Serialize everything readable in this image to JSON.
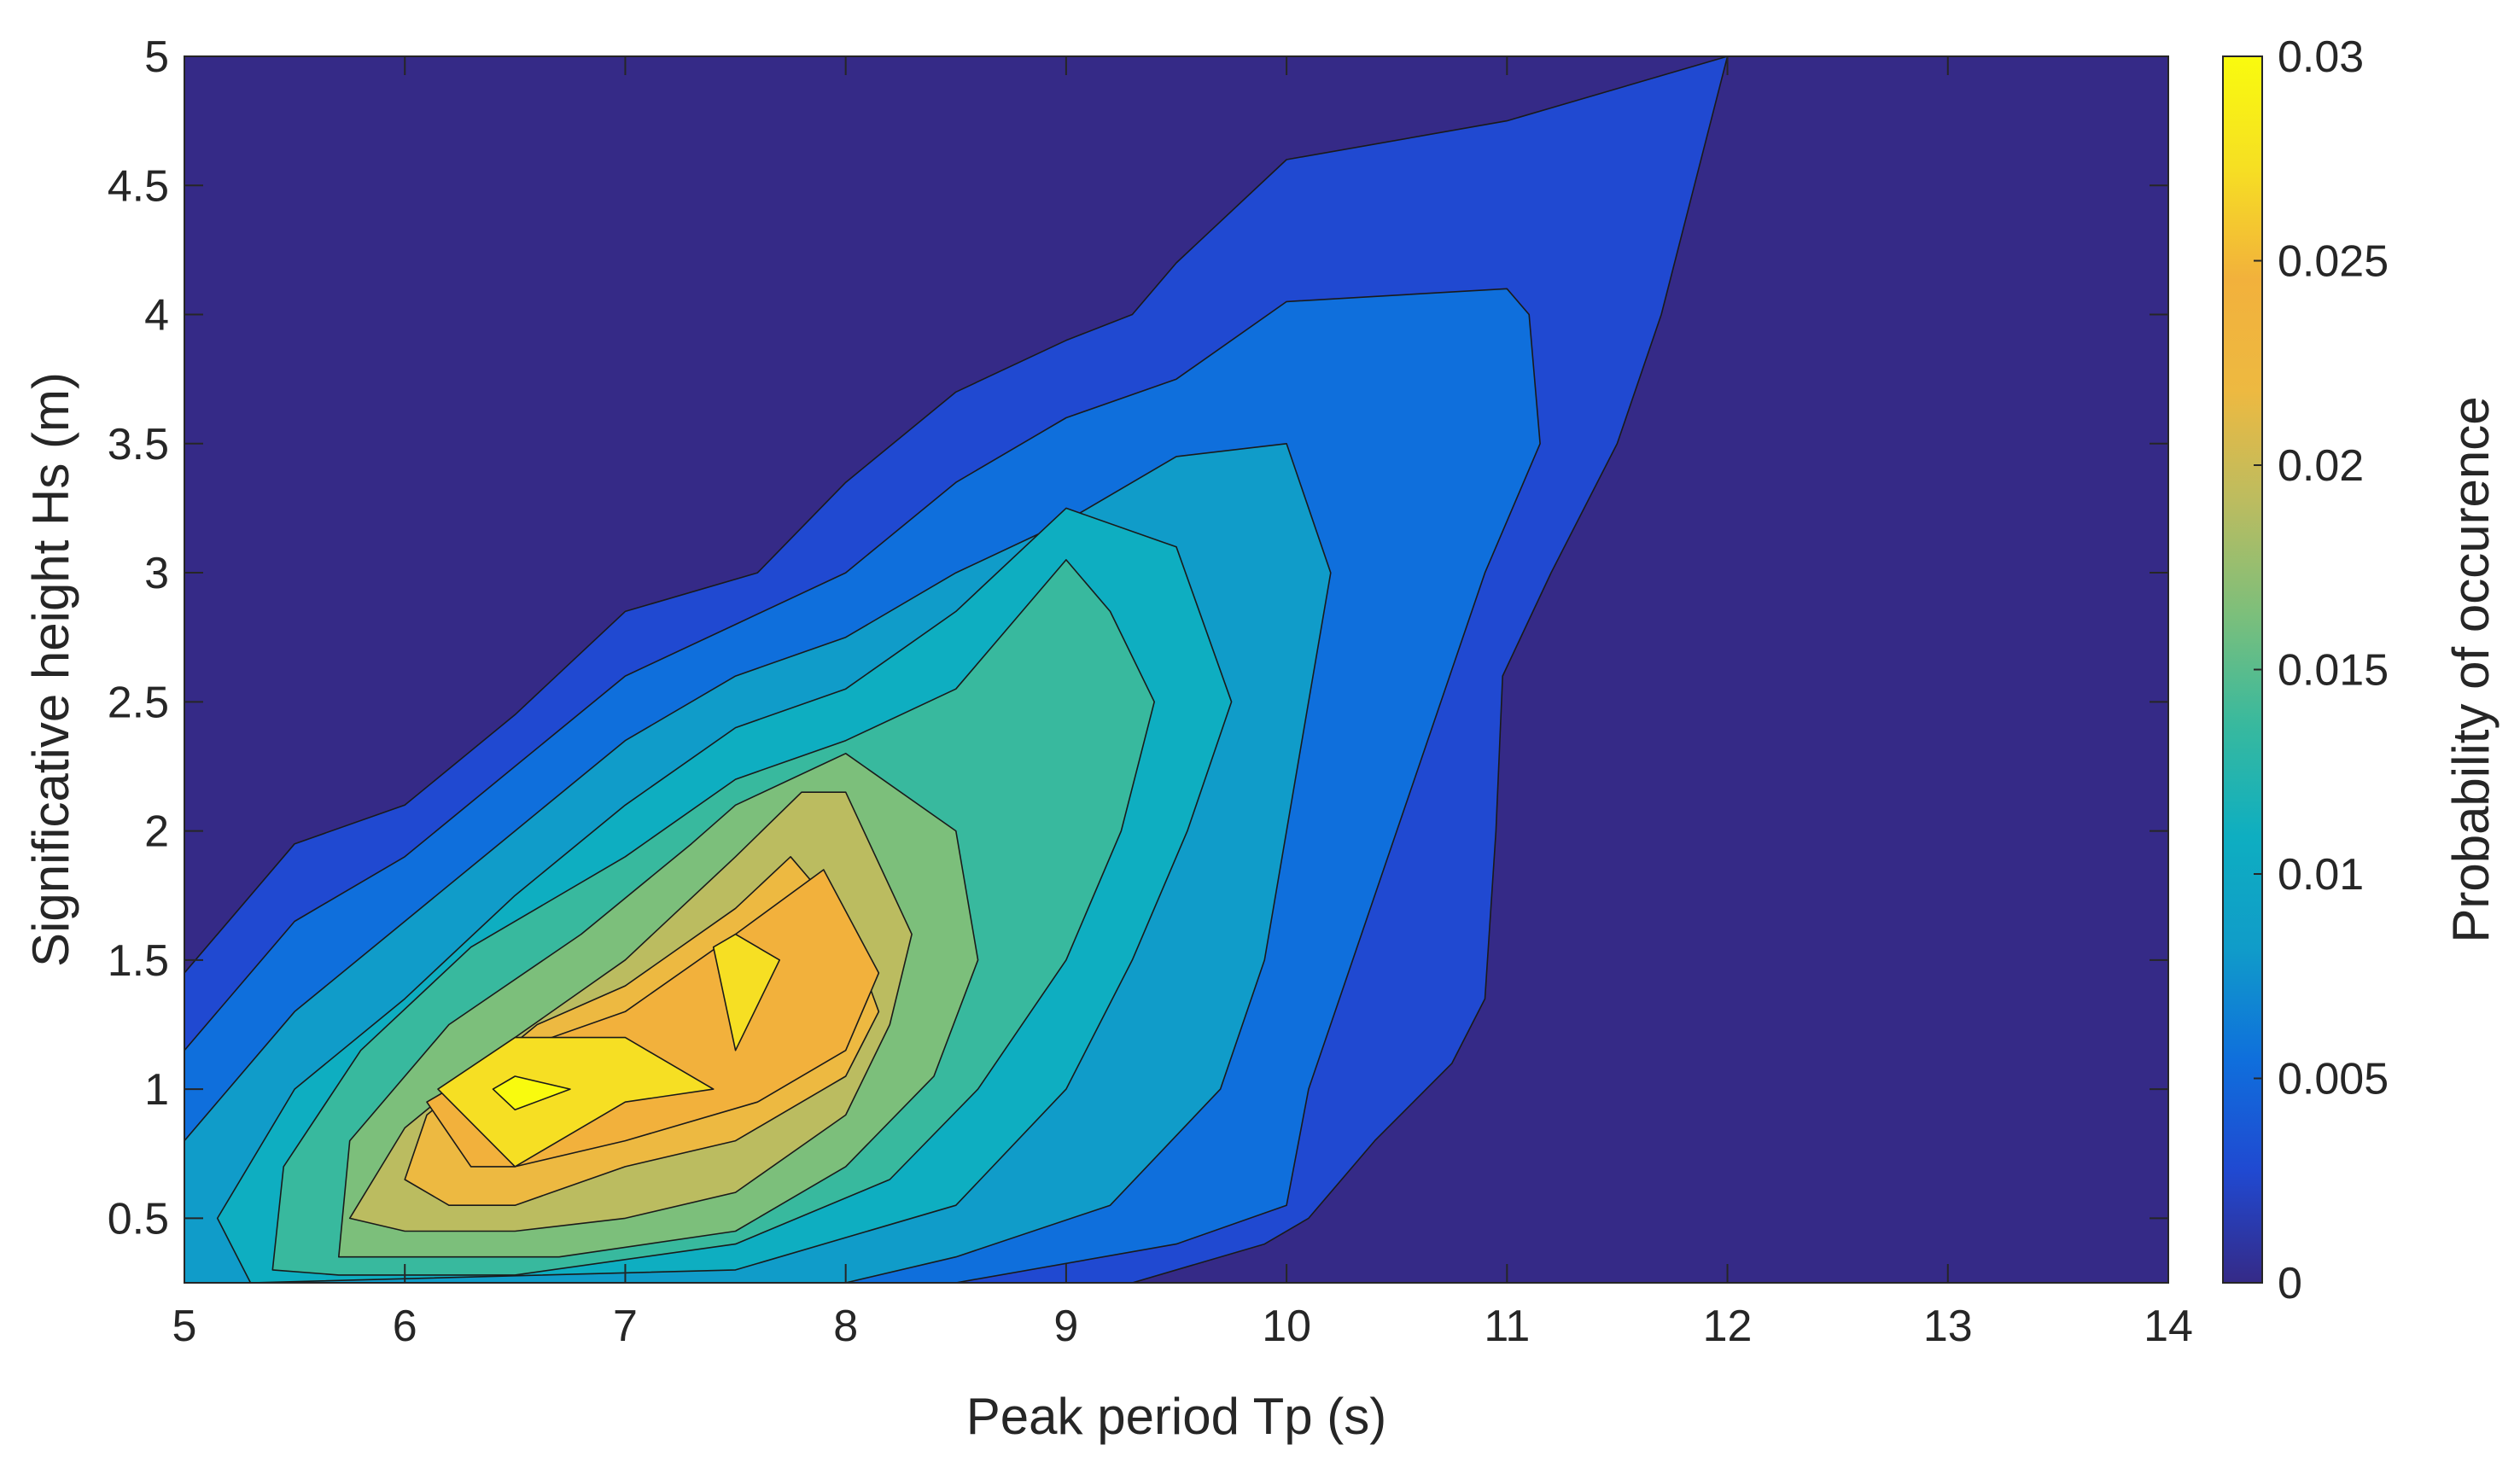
{
  "chart_data": {
    "type": "contourf",
    "title": "",
    "xlabel": "Peak period Tp (s)",
    "ylabel": "Significative height Hs (m)",
    "xlim": [
      5,
      14
    ],
    "ylim": [
      0.25,
      5
    ],
    "xticks": [
      5,
      6,
      7,
      8,
      9,
      10,
      11,
      12,
      13,
      14
    ],
    "yticks": [
      0.5,
      1,
      1.5,
      2,
      2.5,
      3,
      3.5,
      4,
      4.5,
      5
    ],
    "xtick_labels": [
      "5",
      "6",
      "7",
      "8",
      "9",
      "10",
      "11",
      "12",
      "13",
      "14"
    ],
    "ytick_labels": [
      "0.5",
      "1",
      "1.5",
      "2",
      "2.5",
      "3",
      "3.5",
      "4",
      "4.5",
      "5"
    ],
    "colorbar": {
      "label": "Probability of occurence",
      "limits": [
        0,
        0.03
      ],
      "ticks": [
        0,
        0.005,
        0.01,
        0.015,
        0.02,
        0.025,
        0.03
      ],
      "tick_labels": [
        "0",
        "0.005",
        "0.01",
        "0.015",
        "0.02",
        "0.025",
        "0.03"
      ],
      "colormap": "parula"
    },
    "contour_levels": [
      {
        "level": 0.0,
        "color": "#352A87",
        "points": [
          [
            5,
            0.25
          ],
          [
            14,
            0.25
          ],
          [
            14,
            5
          ],
          [
            5,
            5
          ]
        ]
      },
      {
        "level": 0.0025,
        "color": "#2049D1",
        "points": [
          [
            5,
            0.25
          ],
          [
            9.3,
            0.25
          ],
          [
            9.9,
            0.4
          ],
          [
            10.1,
            0.5
          ],
          [
            10.4,
            0.8
          ],
          [
            10.75,
            1.1
          ],
          [
            10.9,
            1.35
          ],
          [
            10.95,
            2
          ],
          [
            10.98,
            2.6
          ],
          [
            11.2,
            3.0
          ],
          [
            11.5,
            3.5
          ],
          [
            11.7,
            4.0
          ],
          [
            12.0,
            5.0
          ],
          [
            11.0,
            4.75
          ],
          [
            10,
            4.6
          ],
          [
            9.5,
            4.2
          ],
          [
            9.3,
            4.0
          ],
          [
            9,
            3.9
          ],
          [
            8.5,
            3.7
          ],
          [
            8,
            3.35
          ],
          [
            7.6,
            3.0
          ],
          [
            7.0,
            2.85
          ],
          [
            6.5,
            2.45
          ],
          [
            6,
            2.1
          ],
          [
            5.5,
            1.95
          ],
          [
            5,
            1.45
          ]
        ]
      },
      {
        "level": 0.005,
        "color": "#0F6FDC",
        "points": [
          [
            5,
            1.15
          ],
          [
            5.5,
            1.65
          ],
          [
            6,
            1.9
          ],
          [
            6.5,
            2.25
          ],
          [
            7,
            2.6
          ],
          [
            7.5,
            2.8
          ],
          [
            8,
            3.0
          ],
          [
            8.5,
            3.35
          ],
          [
            9,
            3.6
          ],
          [
            9.5,
            3.75
          ],
          [
            10,
            4.05
          ],
          [
            11,
            4.1
          ],
          [
            11.1,
            4.0
          ],
          [
            11.15,
            3.5
          ],
          [
            10.9,
            3.0
          ],
          [
            10.7,
            2.5
          ],
          [
            10.5,
            2.0
          ],
          [
            10.3,
            1.5
          ],
          [
            10.1,
            1.0
          ],
          [
            10.0,
            0.55
          ],
          [
            9.5,
            0.4
          ],
          [
            8.5,
            0.25
          ],
          [
            5,
            0.25
          ]
        ]
      },
      {
        "level": 0.01,
        "color": "#109CC9",
        "points": [
          [
            5,
            0.8
          ],
          [
            5.5,
            1.3
          ],
          [
            6,
            1.65
          ],
          [
            6.5,
            2.0
          ],
          [
            7,
            2.35
          ],
          [
            7.5,
            2.6
          ],
          [
            8,
            2.75
          ],
          [
            8.5,
            3.0
          ],
          [
            9,
            3.2
          ],
          [
            9.5,
            3.45
          ],
          [
            10,
            3.5
          ],
          [
            10.2,
            3.0
          ],
          [
            10.1,
            2.5
          ],
          [
            10.0,
            2.0
          ],
          [
            9.9,
            1.5
          ],
          [
            9.7,
            1.0
          ],
          [
            9.2,
            0.55
          ],
          [
            8.5,
            0.35
          ],
          [
            8.0,
            0.25
          ],
          [
            5,
            0.25
          ]
        ]
      },
      {
        "level": 0.0125,
        "color": "#0EAEC1",
        "points": [
          [
            5.15,
            0.5
          ],
          [
            5.5,
            1.0
          ],
          [
            6,
            1.35
          ],
          [
            6.5,
            1.75
          ],
          [
            7,
            2.1
          ],
          [
            7.5,
            2.4
          ],
          [
            8,
            2.55
          ],
          [
            8.5,
            2.85
          ],
          [
            9,
            3.25
          ],
          [
            9.5,
            3.1
          ],
          [
            9.75,
            2.5
          ],
          [
            9.55,
            2.0
          ],
          [
            9.3,
            1.5
          ],
          [
            9.0,
            1.0
          ],
          [
            8.5,
            0.55
          ],
          [
            7.5,
            0.3
          ],
          [
            5.3,
            0.25
          ]
        ]
      },
      {
        "level": 0.015,
        "color": "#38B99E",
        "points": [
          [
            5.4,
            0.3
          ],
          [
            5.45,
            0.7
          ],
          [
            5.8,
            1.15
          ],
          [
            6.3,
            1.55
          ],
          [
            7,
            1.9
          ],
          [
            7.5,
            2.2
          ],
          [
            8,
            2.35
          ],
          [
            8.5,
            2.55
          ],
          [
            9,
            3.05
          ],
          [
            9.2,
            2.85
          ],
          [
            9.4,
            2.5
          ],
          [
            9.25,
            2.0
          ],
          [
            9.0,
            1.5
          ],
          [
            8.6,
            1.0
          ],
          [
            8.2,
            0.65
          ],
          [
            7.5,
            0.4
          ],
          [
            6.5,
            0.28
          ],
          [
            5.7,
            0.28
          ]
        ]
      },
      {
        "level": 0.0175,
        "color": "#7CBF7B",
        "points": [
          [
            5.7,
            0.35
          ],
          [
            5.75,
            0.8
          ],
          [
            6.2,
            1.25
          ],
          [
            6.8,
            1.6
          ],
          [
            7.3,
            1.95
          ],
          [
            7.5,
            2.1
          ],
          [
            8,
            2.3
          ],
          [
            8.5,
            2.0
          ],
          [
            8.6,
            1.5
          ],
          [
            8.4,
            1.05
          ],
          [
            8.0,
            0.7
          ],
          [
            7.5,
            0.45
          ],
          [
            6.7,
            0.35
          ],
          [
            6.0,
            0.35
          ]
        ]
      },
      {
        "level": 0.02,
        "color": "#BBBC60",
        "points": [
          [
            5.75,
            0.5
          ],
          [
            6,
            0.85
          ],
          [
            6.5,
            1.2
          ],
          [
            7,
            1.5
          ],
          [
            7.5,
            1.9
          ],
          [
            7.8,
            2.15
          ],
          [
            8,
            2.15
          ],
          [
            8.3,
            1.6
          ],
          [
            8.2,
            1.25
          ],
          [
            8.0,
            0.9
          ],
          [
            7.5,
            0.6
          ],
          [
            7.0,
            0.5
          ],
          [
            6.5,
            0.45
          ],
          [
            6,
            0.45
          ]
        ]
      },
      {
        "level": 0.0225,
        "color": "#EDB941",
        "points": [
          [
            6.0,
            0.65
          ],
          [
            6.1,
            0.9
          ],
          [
            6.6,
            1.25
          ],
          [
            7,
            1.4
          ],
          [
            7.5,
            1.7
          ],
          [
            7.75,
            1.9
          ],
          [
            8,
            1.65
          ],
          [
            8.15,
            1.3
          ],
          [
            8.0,
            1.05
          ],
          [
            7.5,
            0.8
          ],
          [
            7.0,
            0.7
          ],
          [
            6.5,
            0.55
          ],
          [
            6.2,
            0.55
          ]
        ]
      },
      {
        "level": 0.025,
        "color": "#F2B13C",
        "points": [
          [
            6.1,
            0.95
          ],
          [
            6.5,
            1.15
          ],
          [
            7.0,
            1.3
          ],
          [
            7.5,
            1.6
          ],
          [
            7.9,
            1.85
          ],
          [
            8.15,
            1.45
          ],
          [
            8.0,
            1.15
          ],
          [
            7.6,
            0.95
          ],
          [
            7.0,
            0.8
          ],
          [
            6.5,
            0.7
          ],
          [
            6.3,
            0.7
          ]
        ]
      },
      {
        "level": 0.0275,
        "color": "#F6DF23",
        "points": [
          [
            6.15,
            1.0
          ],
          [
            6.5,
            1.2
          ],
          [
            7.0,
            1.2
          ],
          [
            7.4,
            1.0
          ],
          [
            7.0,
            0.95
          ],
          [
            6.5,
            0.7
          ]
        ]
      },
      {
        "level": 0.0275,
        "color": "#F6DF23",
        "points": [
          [
            7.4,
            1.55
          ],
          [
            7.5,
            1.6
          ],
          [
            7.7,
            1.5
          ],
          [
            7.5,
            1.15
          ]
        ]
      },
      {
        "level": 0.03,
        "color": "#F9FB0E",
        "points": [
          [
            6.4,
            1.0
          ],
          [
            6.5,
            1.05
          ],
          [
            6.75,
            1.0
          ],
          [
            6.5,
            0.92
          ]
        ]
      }
    ]
  }
}
